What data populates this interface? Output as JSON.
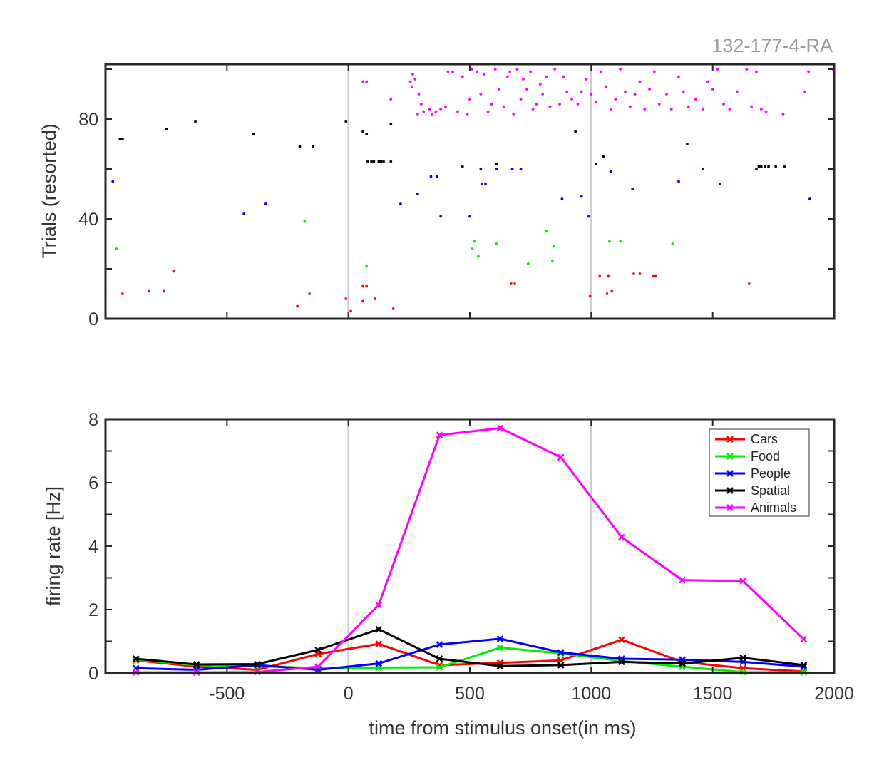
{
  "figure": {
    "corner_label": "132-177-4-RA"
  },
  "chart_data": [
    {
      "type": "scatter",
      "panel": "raster",
      "ylabel": "Trials (resorted)",
      "xlabel": "",
      "xlim": [
        -1000,
        2000
      ],
      "ylim": [
        0,
        102
      ],
      "xticks": [
        -500,
        0,
        500,
        1000,
        1500
      ],
      "yticks": [
        0,
        40,
        80
      ],
      "ytick_labels": [
        "0",
        "40",
        "80"
      ],
      "vertical_lines": [
        0,
        1000
      ],
      "grid": false,
      "series": [
        {
          "name": "Cars",
          "color": "#ff0000",
          "points": [
            [
              -930,
              10
            ],
            [
              -820,
              11
            ],
            [
              -760,
              11
            ],
            [
              -720,
              19
            ],
            [
              -210,
              5
            ],
            [
              -160,
              10
            ],
            [
              -10,
              8
            ],
            [
              10,
              3
            ],
            [
              60,
              7
            ],
            [
              60,
              13
            ],
            [
              75,
              13
            ],
            [
              110,
              8
            ],
            [
              185,
              4
            ],
            [
              670,
              14
            ],
            [
              685,
              14
            ],
            [
              995,
              9
            ],
            [
              1035,
              17
            ],
            [
              1070,
              17
            ],
            [
              1065,
              10
            ],
            [
              1085,
              11
            ],
            [
              1175,
              18
            ],
            [
              1200,
              18
            ],
            [
              1255,
              17
            ],
            [
              1265,
              17
            ],
            [
              1650,
              14
            ]
          ]
        },
        {
          "name": "Food",
          "color": "#00ee00",
          "points": [
            [
              -955,
              28
            ],
            [
              -180,
              39
            ],
            [
              75,
              21
            ],
            [
              510,
              28
            ],
            [
              520,
              31
            ],
            [
              535,
              25
            ],
            [
              610,
              30
            ],
            [
              740,
              22
            ],
            [
              815,
              35
            ],
            [
              845,
              29
            ],
            [
              840,
              23
            ],
            [
              1075,
              31
            ],
            [
              1120,
              31
            ],
            [
              1335,
              30
            ]
          ]
        },
        {
          "name": "People",
          "color": "#0000ff",
          "points": [
            [
              -970,
              55
            ],
            [
              -430,
              42
            ],
            [
              -340,
              46
            ],
            [
              215,
              46
            ],
            [
              285,
              50
            ],
            [
              340,
              57
            ],
            [
              365,
              57
            ],
            [
              380,
              41
            ],
            [
              500,
              41
            ],
            [
              545,
              60
            ],
            [
              550,
              54
            ],
            [
              565,
              54
            ],
            [
              610,
              60
            ],
            [
              675,
              60
            ],
            [
              710,
              60
            ],
            [
              880,
              48
            ],
            [
              960,
              49
            ],
            [
              990,
              41
            ],
            [
              1080,
              59
            ],
            [
              1170,
              52
            ],
            [
              1360,
              55
            ],
            [
              1460,
              60
            ],
            [
              1530,
              54
            ],
            [
              1680,
              60
            ],
            [
              1900,
              48
            ]
          ]
        },
        {
          "name": "Spatial",
          "color": "#000000",
          "points": [
            [
              -940,
              72
            ],
            [
              -930,
              72
            ],
            [
              -750,
              76
            ],
            [
              -630,
              79
            ],
            [
              -390,
              74
            ],
            [
              -200,
              69
            ],
            [
              -145,
              69
            ],
            [
              -10,
              79
            ],
            [
              60,
              75
            ],
            [
              75,
              74
            ],
            [
              80,
              63
            ],
            [
              95,
              63
            ],
            [
              105,
              63
            ],
            [
              125,
              63
            ],
            [
              130,
              63
            ],
            [
              135,
              63
            ],
            [
              145,
              63
            ],
            [
              175,
              78
            ],
            [
              175,
              63
            ],
            [
              470,
              61
            ],
            [
              610,
              62
            ],
            [
              935,
              75
            ],
            [
              1020,
              62
            ],
            [
              1050,
              65
            ],
            [
              1395,
              70
            ],
            [
              1690,
              61
            ],
            [
              1700,
              61
            ],
            [
              1715,
              61
            ],
            [
              1730,
              61
            ],
            [
              1760,
              61
            ],
            [
              1795,
              61
            ]
          ]
        },
        {
          "name": "Animals",
          "color": "#ff00ff",
          "points": [
            [
              60,
              95
            ],
            [
              75,
              95
            ],
            [
              175,
              88
            ],
            [
              255,
              95
            ],
            [
              262,
              93
            ],
            [
              265,
              98
            ],
            [
              275,
              96
            ],
            [
              290,
              90
            ],
            [
              300,
              86
            ],
            [
              285,
              82
            ],
            [
              310,
              83
            ],
            [
              335,
              84
            ],
            [
              345,
              82
            ],
            [
              360,
              83
            ],
            [
              380,
              84
            ],
            [
              400,
              85
            ],
            [
              410,
              99
            ],
            [
              430,
              99
            ],
            [
              450,
              83
            ],
            [
              470,
              97
            ],
            [
              490,
              82
            ],
            [
              500,
              88
            ],
            [
              510,
              100
            ],
            [
              530,
              99
            ],
            [
              545,
              90
            ],
            [
              560,
              98
            ],
            [
              575,
              83
            ],
            [
              590,
              86
            ],
            [
              605,
              100
            ],
            [
              620,
              92
            ],
            [
              640,
              85
            ],
            [
              655,
              97
            ],
            [
              665,
              99
            ],
            [
              680,
              82
            ],
            [
              695,
              100
            ],
            [
              710,
              88
            ],
            [
              720,
              96
            ],
            [
              735,
              92
            ],
            [
              750,
              99
            ],
            [
              760,
              84
            ],
            [
              775,
              86
            ],
            [
              790,
              94
            ],
            [
              800,
              90
            ],
            [
              815,
              97
            ],
            [
              830,
              85
            ],
            [
              850,
              100
            ],
            [
              870,
              86
            ],
            [
              885,
              97
            ],
            [
              900,
              91
            ],
            [
              920,
              88
            ],
            [
              945,
              86
            ],
            [
              960,
              91
            ],
            [
              980,
              96
            ],
            [
              1000,
              90
            ],
            [
              1020,
              87
            ],
            [
              1040,
              99
            ],
            [
              1060,
              93
            ],
            [
              1080,
              84
            ],
            [
              1100,
              88
            ],
            [
              1120,
              100
            ],
            [
              1140,
              91
            ],
            [
              1160,
              85
            ],
            [
              1180,
              90
            ],
            [
              1200,
              95
            ],
            [
              1220,
              84
            ],
            [
              1240,
              92
            ],
            [
              1260,
              99
            ],
            [
              1280,
              86
            ],
            [
              1310,
              90
            ],
            [
              1330,
              84
            ],
            [
              1360,
              97
            ],
            [
              1380,
              91
            ],
            [
              1400,
              85
            ],
            [
              1430,
              88
            ],
            [
              1460,
              84
            ],
            [
              1480,
              95
            ],
            [
              1500,
              92
            ],
            [
              1520,
              100
            ],
            [
              1545,
              86
            ],
            [
              1570,
              84
            ],
            [
              1600,
              91
            ],
            [
              1640,
              100
            ],
            [
              1660,
              85
            ],
            [
              1680,
              99
            ],
            [
              1700,
              84
            ],
            [
              1720,
              83
            ],
            [
              1790,
              82
            ],
            [
              1880,
              91
            ],
            [
              1895,
              99
            ],
            [
              1995,
              100
            ]
          ]
        }
      ]
    },
    {
      "type": "line",
      "panel": "psth",
      "ylabel": "firing rate [Hz]",
      "xlabel": "time from stimulus onset(in ms)",
      "xlim": [
        -1000,
        2000
      ],
      "ylim": [
        0,
        8
      ],
      "xticks": [
        -500,
        0,
        500,
        1000,
        1500,
        2000
      ],
      "xtick_labels": [
        "-500",
        "0",
        "500",
        "1000",
        "1500",
        "2000"
      ],
      "yticks": [
        0,
        2,
        4,
        6,
        8
      ],
      "ytick_labels": [
        "0",
        "2",
        "4",
        "6",
        "8"
      ],
      "vertical_lines": [
        0,
        1000
      ],
      "grid": false,
      "legend_position": "top-right",
      "x": [
        -875,
        -625,
        -375,
        -125,
        125,
        375,
        625,
        875,
        1125,
        1375,
        1625,
        1875
      ],
      "series": [
        {
          "name": "Cars",
          "color": "#ff0000",
          "values": [
            0.4,
            0.2,
            0.1,
            0.6,
            0.92,
            0.25,
            0.32,
            0.4,
            1.05,
            0.35,
            0.15,
            0.05
          ]
        },
        {
          "name": "Food",
          "color": "#00ee00",
          "values": [
            0.42,
            0.25,
            0.22,
            0.15,
            0.17,
            0.18,
            0.8,
            0.62,
            0.38,
            0.2,
            0.03,
            0.02
          ]
        },
        {
          "name": "People",
          "color": "#0000ff",
          "values": [
            0.15,
            0.1,
            0.25,
            0.1,
            0.3,
            0.9,
            1.08,
            0.65,
            0.45,
            0.42,
            0.35,
            0.2
          ]
        },
        {
          "name": "Spatial",
          "color": "#000000",
          "values": [
            0.45,
            0.27,
            0.28,
            0.73,
            1.38,
            0.45,
            0.22,
            0.25,
            0.35,
            0.3,
            0.48,
            0.25
          ]
        },
        {
          "name": "Animals",
          "color": "#ff00ff",
          "values": [
            0.02,
            0.02,
            0.03,
            0.2,
            2.15,
            7.5,
            7.72,
            6.8,
            4.28,
            2.93,
            2.9,
            1.07
          ]
        }
      ]
    }
  ]
}
